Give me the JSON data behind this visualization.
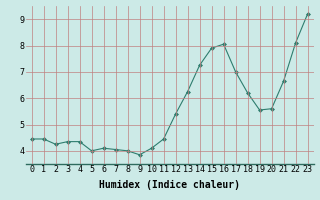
{
  "x": [
    0,
    1,
    2,
    3,
    4,
    5,
    6,
    7,
    8,
    9,
    10,
    11,
    12,
    13,
    14,
    15,
    16,
    17,
    18,
    19,
    20,
    21,
    22,
    23
  ],
  "y": [
    4.45,
    4.45,
    4.25,
    4.35,
    4.35,
    4.0,
    4.1,
    4.05,
    4.0,
    3.85,
    4.1,
    4.45,
    5.4,
    6.25,
    7.25,
    7.9,
    8.05,
    7.0,
    6.2,
    5.55,
    5.6,
    6.65,
    8.1,
    9.2
  ],
  "line_color": "#2e7d6e",
  "marker": "D",
  "marker_size": 2,
  "bg_color": "#cceae7",
  "grid_color": "#b0b0b0",
  "grid_color_major": "#c08080",
  "xlabel": "Humidex (Indice chaleur)",
  "xlabel_fontsize": 7,
  "tick_fontsize": 6,
  "xlim": [
    -0.5,
    23.5
  ],
  "ylim": [
    3.5,
    9.5
  ],
  "yticks": [
    4,
    5,
    6,
    7,
    8,
    9
  ],
  "xticks": [
    0,
    1,
    2,
    3,
    4,
    5,
    6,
    7,
    8,
    9,
    10,
    11,
    12,
    13,
    14,
    15,
    16,
    17,
    18,
    19,
    20,
    21,
    22,
    23
  ]
}
